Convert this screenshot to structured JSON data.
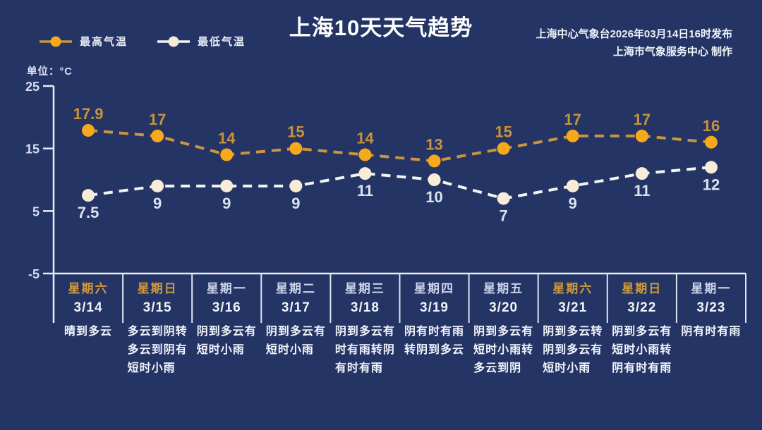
{
  "title": "上海10天天气趋势",
  "publisher": {
    "line1": "上海中心气象台2026年03月14日16时发布",
    "line2": "上海市气象服务中心 制作"
  },
  "legend": {
    "max_label": "最高气温",
    "min_label": "最低气温"
  },
  "unit_label": "单位：°C",
  "colors": {
    "background": "#243464",
    "axis": "#e8ecf6",
    "separator": "#dfe3f0",
    "weekend_label": "#cf9a3d",
    "weekday_label": "#ccd3ea"
  },
  "chart_data": {
    "type": "line",
    "title": "上海10天天气趋势",
    "ylabel": "°C",
    "ylim": [
      -5,
      25
    ],
    "yticks": [
      25,
      15,
      5,
      -5
    ],
    "grid": false,
    "legend_position": "top-left",
    "categories": [
      "3/14",
      "3/15",
      "3/16",
      "3/17",
      "3/18",
      "3/19",
      "3/20",
      "3/21",
      "3/22",
      "3/23"
    ],
    "weekdays": [
      "星期六",
      "星期日",
      "星期一",
      "星期二",
      "星期三",
      "星期四",
      "星期五",
      "星期六",
      "星期日",
      "星期一"
    ],
    "series": [
      {
        "name": "最高气温",
        "values": [
          17.9,
          17,
          14,
          15,
          14,
          13,
          15,
          17,
          17,
          16
        ],
        "line_color": "#cb9440",
        "marker_color": "#f7a91c",
        "label_color": "#c8923b",
        "label_position": "above"
      },
      {
        "name": "最低气温",
        "values": [
          7.5,
          9,
          9,
          9,
          11,
          10,
          7,
          9,
          11,
          12
        ],
        "line_color": "#f3f3f3",
        "marker_color": "#f8ecd9",
        "label_color": "#dde2f1",
        "label_position": "below"
      }
    ],
    "weather_lines": [
      [
        "晴到多云"
      ],
      [
        "多云到阴转",
        "多云到阴有",
        "短时小雨"
      ],
      [
        "阴到多云有",
        "短时小雨"
      ],
      [
        "阴到多云有",
        "短时小雨"
      ],
      [
        "阴到多云有",
        "时有雨转阴",
        "有时有雨"
      ],
      [
        "阴有时有雨",
        "转阴到多云"
      ],
      [
        "阴到多云有",
        "短时小雨转",
        "多云到阴"
      ],
      [
        "阴到多云转",
        "阴到多云有",
        "短时小雨"
      ],
      [
        "阴到多云有",
        "短时小雨转",
        "阴有时有雨"
      ],
      [
        "阴有时有雨"
      ]
    ]
  }
}
